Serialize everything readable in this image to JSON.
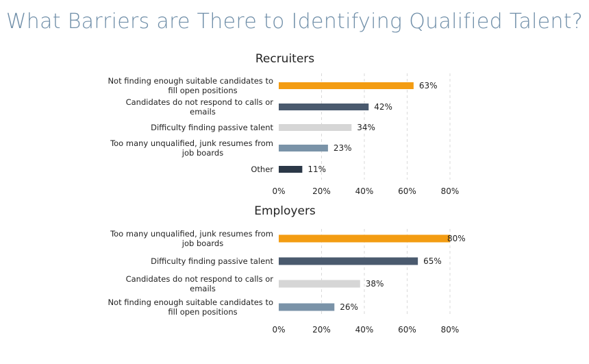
{
  "page": {
    "title": "What Barriers are There to Identifying Qualified Talent?"
  },
  "chart_data": [
    {
      "type": "bar",
      "orientation": "horizontal",
      "title": "Recruiters",
      "categories": [
        [
          "Not finding enough suitable candidates to",
          "fill open positions"
        ],
        [
          "Candidates do not respond to calls or",
          "emails"
        ],
        [
          "Difficulty finding passive talent"
        ],
        [
          "Too many unqualified, junk resumes from",
          "job boards"
        ],
        [
          "Other"
        ]
      ],
      "values": [
        63,
        42,
        34,
        23,
        11
      ],
      "value_labels": [
        "63%",
        "42%",
        "34%",
        "23%",
        "11%"
      ],
      "colors": [
        "#f39c12",
        "#4a5a6e",
        "#d6d6d6",
        "#7a93a8",
        "#2b3847"
      ],
      "xlim": [
        0,
        80
      ],
      "x_ticks": [
        "0%",
        "20%",
        "40%",
        "60%",
        "80%"
      ],
      "grid": true,
      "legend": "none"
    },
    {
      "type": "bar",
      "orientation": "horizontal",
      "title": "Employers",
      "categories": [
        [
          "Too many unqualified, junk resumes from",
          "job boards"
        ],
        [
          "Difficulty finding passive talent"
        ],
        [
          "Candidates do not respond to calls or",
          "emails"
        ],
        [
          "Not finding enough suitable candidates to",
          "fill open positions"
        ]
      ],
      "values": [
        80,
        65,
        38,
        26
      ],
      "value_labels": [
        "80%",
        "65%",
        "38%",
        "26%"
      ],
      "colors": [
        "#f39c12",
        "#4a5a6e",
        "#d6d6d6",
        "#7a93a8"
      ],
      "xlim": [
        0,
        80
      ],
      "x_ticks": [
        "0%",
        "20%",
        "40%",
        "60%",
        "80%"
      ],
      "grid": true,
      "legend": "none"
    }
  ]
}
